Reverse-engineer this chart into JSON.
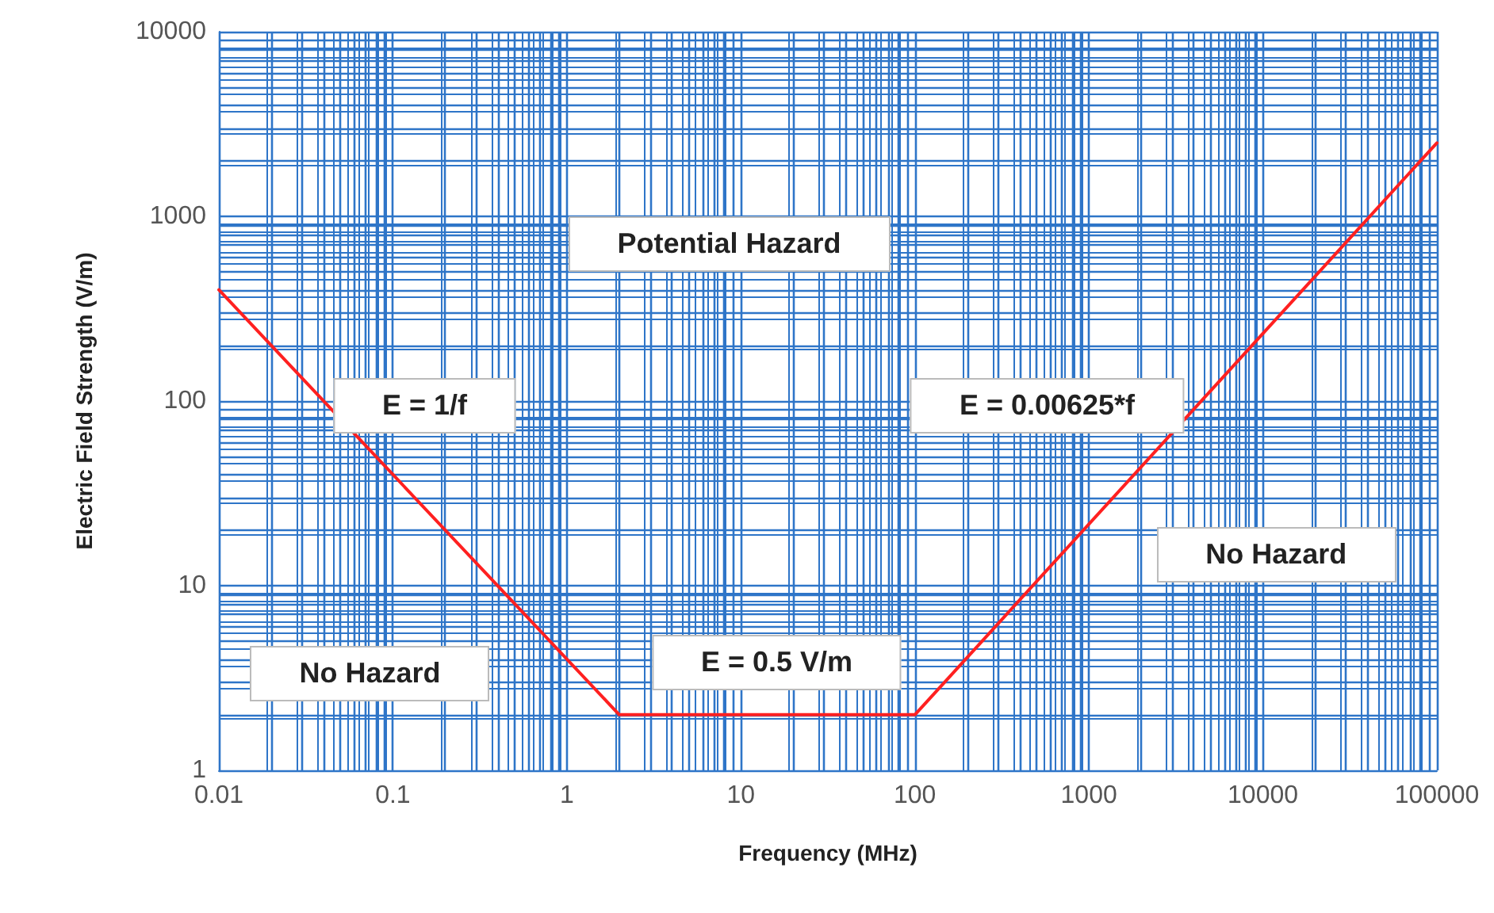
{
  "chart_data": {
    "type": "line",
    "xlabel": "Frequency (MHz)",
    "ylabel": "Electric Field Strength (V/m)",
    "log": "xy",
    "grid": true,
    "marker": "none",
    "line_style": "solid",
    "xlim": [
      0.01,
      100000
    ],
    "xticks": [
      0.01,
      {
        "value": 0.02,
        "label": null
      },
      {
        "value": 0.03,
        "label": null
      },
      {
        "value": 0.04,
        "label": null
      },
      {
        "value": 0.05,
        "label": null
      },
      {
        "value": 0.06,
        "label": null
      },
      {
        "value": 0.07,
        "label": null
      },
      {
        "value": 0.08,
        "label": null
      },
      {
        "value": 0.09,
        "label": null
      },
      0.1,
      {
        "value": 0.2,
        "label": null
      },
      {
        "value": 0.3,
        "label": null
      },
      {
        "value": 0.4,
        "label": null
      },
      {
        "value": 0.5,
        "label": null
      },
      {
        "value": 0.6,
        "label": null
      },
      {
        "value": 0.7,
        "label": null
      },
      {
        "value": 0.8,
        "label": null
      },
      {
        "value": 0.9,
        "label": null
      },
      1,
      {
        "value": 2,
        "label": null
      },
      {
        "value": 3,
        "label": null
      },
      {
        "value": 4,
        "label": null
      },
      {
        "value": 5,
        "label": null
      },
      {
        "value": 6,
        "label": null
      },
      {
        "value": 7,
        "label": null
      },
      {
        "value": 8,
        "label": null
      },
      {
        "value": 9,
        "label": null
      },
      10,
      {
        "value": 20,
        "label": null
      },
      {
        "value": 30,
        "label": null
      },
      {
        "value": 40,
        "label": null
      },
      {
        "value": 50,
        "label": null
      },
      {
        "value": 60,
        "label": null
      },
      {
        "value": 70,
        "label": null
      },
      {
        "value": 80,
        "label": null
      },
      {
        "value": 90,
        "label": null
      },
      100,
      {
        "value": 200,
        "label": null
      },
      {
        "value": 300,
        "label": null
      },
      {
        "value": 400,
        "label": null
      },
      {
        "value": 500,
        "label": null
      },
      {
        "value": 600,
        "label": null
      },
      {
        "value": 700,
        "label": null
      },
      {
        "value": 800,
        "label": null
      },
      {
        "value": 900,
        "label": null
      },
      1000,
      {
        "value": 2000,
        "label": null
      },
      {
        "value": 3000,
        "label": null
      },
      {
        "value": 4000,
        "label": null
      },
      {
        "value": 5000,
        "label": null
      },
      {
        "value": 6000,
        "label": null
      },
      {
        "value": 7000,
        "label": null
      },
      {
        "value": 8000,
        "label": null
      },
      {
        "value": 9000,
        "label": null
      },
      10000,
      {
        "value": 20000,
        "label": null
      },
      {
        "value": 30000,
        "label": null
      },
      {
        "value": 40000,
        "label": null
      },
      {
        "value": 50000,
        "label": null
      },
      {
        "value": 60000,
        "label": null
      },
      {
        "value": 70000,
        "label": null
      },
      {
        "value": 80000,
        "label": null
      },
      {
        "value": 90000,
        "label": null
      },
      100000
    ],
    "ylim": [
      1,
      10000
    ],
    "yticks": [
      1,
      {
        "value": 2,
        "label": null
      },
      {
        "value": 3,
        "label": null
      },
      {
        "value": 4,
        "label": null
      },
      {
        "value": 5,
        "label": null
      },
      {
        "value": 6,
        "label": null
      },
      {
        "value": 7,
        "label": null
      },
      {
        "value": 8,
        "label": null
      },
      {
        "value": 9,
        "label": null
      },
      10,
      {
        "value": 20,
        "label": null
      },
      {
        "value": 30,
        "label": null
      },
      {
        "value": 40,
        "label": null
      },
      {
        "value": 50,
        "label": null
      },
      {
        "value": 60,
        "label": null
      },
      {
        "value": 70,
        "label": null
      },
      {
        "value": 80,
        "label": null
      },
      {
        "value": 90,
        "label": null
      },
      100,
      {
        "value": 200,
        "label": null
      },
      {
        "value": 300,
        "label": null
      },
      {
        "value": 400,
        "label": null
      },
      {
        "value": 500,
        "label": null
      },
      {
        "value": 600,
        "label": null
      },
      {
        "value": 700,
        "label": null
      },
      {
        "value": 800,
        "label": null
      },
      {
        "value": 900,
        "label": null
      },
      1000,
      {
        "value": 2000,
        "label": null
      },
      {
        "value": 3000,
        "label": null
      },
      {
        "value": 4000,
        "label": null
      },
      {
        "value": 5000,
        "label": null
      },
      {
        "value": 6000,
        "label": null
      },
      {
        "value": 7000,
        "label": null
      },
      {
        "value": 8000,
        "label": null
      },
      {
        "value": 9000,
        "label": null
      },
      10000
    ],
    "series": [
      {
        "color": "#ff2020",
        "x": [
          0.01,
          2,
          100,
          100000
        ],
        "values": [
          400,
          2,
          2,
          2500
        ]
      }
    ],
    "annotations": [
      "Potential Hazard",
      "E = 1/f",
      "E = 0.00625*f",
      "No Hazard",
      "No Hazard",
      "E = 0.5 V/m"
    ]
  }
}
